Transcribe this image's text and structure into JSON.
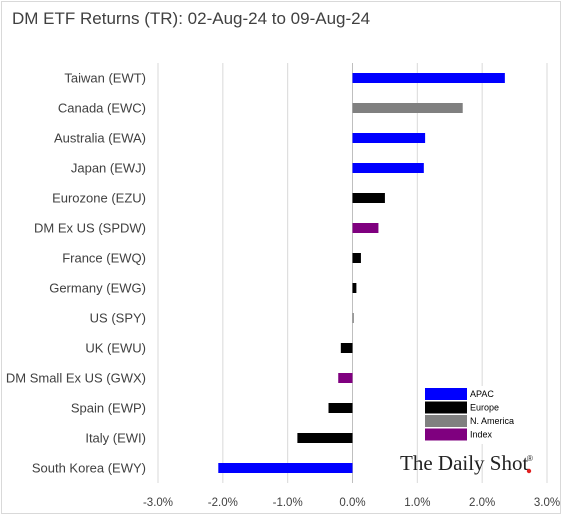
{
  "title": "DM ETF Returns (TR): 02-Aug-24 to 09-Aug-24",
  "brand": "The Daily Shot",
  "brand_mark": "®",
  "colors": {
    "APAC": "#0000ff",
    "Europe": "#000000",
    "N. America": "#808080",
    "Index": "#7f007f",
    "gridline": "#d9d9d9",
    "axis": "#bfbfbf",
    "brand_dot": "#e02020"
  },
  "chart_data": {
    "type": "bar",
    "orientation": "horizontal",
    "title": "DM ETF Returns (TR): 02-Aug-24 to 09-Aug-24",
    "unit": "%",
    "xlim": [
      -3.0,
      3.0
    ],
    "x_ticks": [
      -3.0,
      -2.0,
      -1.0,
      0.0,
      1.0,
      2.0,
      3.0
    ],
    "x_tick_labels": [
      "-3.0%",
      "-2.0%",
      "-1.0%",
      "0.0%",
      "1.0%",
      "2.0%",
      "3.0%"
    ],
    "grid": "vertical",
    "legend_position": "bottom-right",
    "legend": [
      "APAC",
      "Europe",
      "N. America",
      "Index"
    ],
    "categories": [
      "Taiwan (EWT)",
      "Canada (EWC)",
      "Australia (EWA)",
      "Japan (EWJ)",
      "Eurozone (EZU)",
      "DM Ex US (SPDW)",
      "France (EWQ)",
      "Germany (EWG)",
      "US (SPY)",
      "UK (EWU)",
      "DM Small Ex US (GWX)",
      "Spain (EWP)",
      "Italy (EWI)",
      "South Korea (EWY)"
    ],
    "values": [
      2.35,
      1.7,
      1.12,
      1.1,
      0.5,
      0.4,
      0.13,
      0.06,
      0.02,
      -0.18,
      -0.22,
      -0.37,
      -0.85,
      -2.07
    ],
    "groups": [
      "APAC",
      "N. America",
      "APAC",
      "APAC",
      "Europe",
      "Index",
      "Europe",
      "Europe",
      "N. America",
      "Europe",
      "Index",
      "Europe",
      "Europe",
      "APAC"
    ]
  }
}
